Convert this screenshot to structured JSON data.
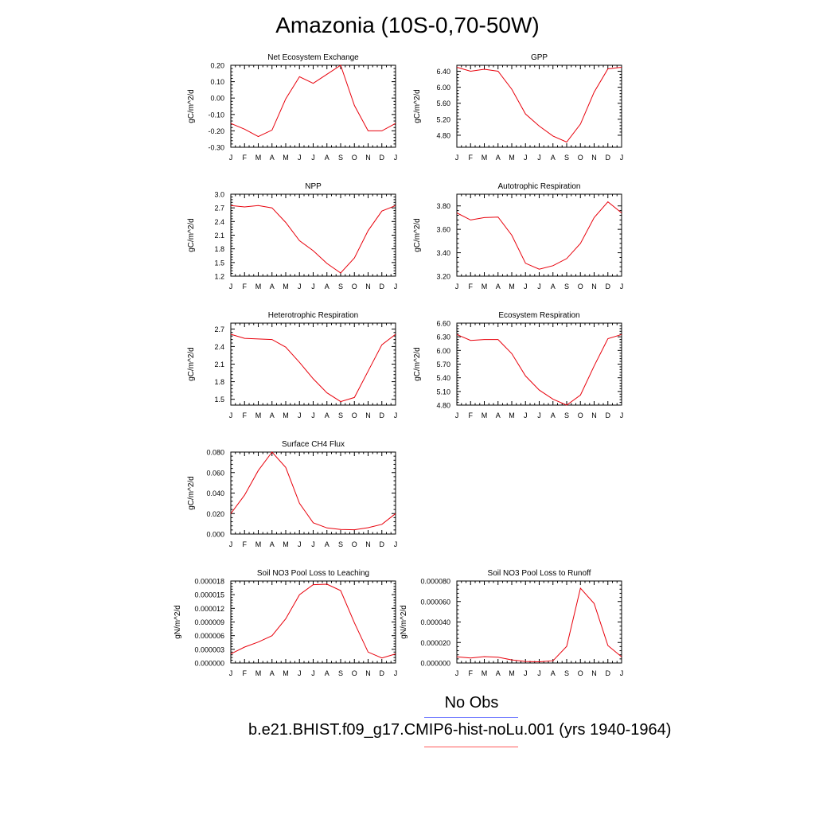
{
  "title": "Amazonia (10S-0,70-50W)",
  "legend": {
    "obs_label": "No Obs",
    "obs_color": "#7b84ff",
    "case_label": "b.e21.BHIST.f09_g17.CMIP6-hist-noLu.001 (yrs 1940-1964)",
    "case_color": "#ff5a5a"
  },
  "line_color": "#e8000b",
  "chart_data": [
    {
      "type": "line",
      "title": "Net Ecosystem Exchange",
      "ylabel": "gC/m^2/d",
      "x": [
        "J",
        "F",
        "M",
        "A",
        "M",
        "J",
        "J",
        "A",
        "S",
        "O",
        "N",
        "D",
        "J"
      ],
      "ylim": [
        -0.3,
        0.2
      ],
      "yticks": [
        -0.3,
        -0.2,
        -0.1,
        0.0,
        0.1,
        0.2
      ],
      "ytick_labels": [
        "-0.30",
        "-0.20",
        "-0.10",
        "0.00",
        "0.10",
        "0.20"
      ],
      "series": [
        {
          "values": [
            -0.155,
            -0.19,
            -0.235,
            -0.195,
            -0.005,
            0.13,
            0.09,
            0.145,
            0.2,
            -0.045,
            -0.2,
            -0.2,
            -0.155
          ]
        }
      ]
    },
    {
      "type": "line",
      "title": "GPP",
      "ylabel": "gC/m^2/d",
      "x": [
        "J",
        "F",
        "M",
        "A",
        "M",
        "J",
        "J",
        "A",
        "S",
        "O",
        "N",
        "D",
        "J"
      ],
      "ylim": [
        4.5,
        6.55
      ],
      "yticks": [
        4.8,
        5.2,
        5.6,
        6.0,
        6.4
      ],
      "ytick_labels": [
        "4.80",
        "5.20",
        "5.60",
        "6.00",
        "6.40"
      ],
      "series": [
        {
          "values": [
            6.5,
            6.4,
            6.45,
            6.4,
            5.95,
            5.33,
            5.03,
            4.78,
            4.63,
            5.08,
            5.88,
            6.46,
            6.5
          ]
        }
      ]
    },
    {
      "type": "line",
      "title": "NPP",
      "ylabel": "gC/m^2/d",
      "x": [
        "J",
        "F",
        "M",
        "A",
        "M",
        "J",
        "J",
        "A",
        "S",
        "O",
        "N",
        "D",
        "J"
      ],
      "ylim": [
        1.2,
        3.0
      ],
      "yticks": [
        1.2,
        1.5,
        1.8,
        2.1,
        2.4,
        2.7,
        3.0
      ],
      "ytick_labels": [
        "1.2",
        "1.5",
        "1.8",
        "2.1",
        "2.4",
        "2.7",
        "3.0"
      ],
      "series": [
        {
          "values": [
            2.75,
            2.72,
            2.75,
            2.7,
            2.38,
            1.98,
            1.76,
            1.48,
            1.27,
            1.6,
            2.2,
            2.63,
            2.75
          ]
        }
      ]
    },
    {
      "type": "line",
      "title": "Autotrophic Respiration",
      "ylabel": "gC/m^2/d",
      "x": [
        "J",
        "F",
        "M",
        "A",
        "M",
        "J",
        "J",
        "A",
        "S",
        "O",
        "N",
        "D",
        "J"
      ],
      "ylim": [
        3.2,
        3.9
      ],
      "yticks": [
        3.2,
        3.4,
        3.6,
        3.8
      ],
      "ytick_labels": [
        "3.20",
        "3.40",
        "3.60",
        "3.80"
      ],
      "series": [
        {
          "values": [
            3.74,
            3.68,
            3.7,
            3.705,
            3.55,
            3.31,
            3.26,
            3.29,
            3.35,
            3.48,
            3.7,
            3.835,
            3.74
          ]
        }
      ]
    },
    {
      "type": "line",
      "title": "Heterotrophic Respiration",
      "ylabel": "gC/m^2/d",
      "x": [
        "J",
        "F",
        "M",
        "A",
        "M",
        "J",
        "J",
        "A",
        "S",
        "O",
        "N",
        "D",
        "J"
      ],
      "ylim": [
        1.4,
        2.8
      ],
      "yticks": [
        1.5,
        1.8,
        2.1,
        2.4,
        2.7
      ],
      "ytick_labels": [
        "1.5",
        "1.8",
        "2.1",
        "2.4",
        "2.7"
      ],
      "series": [
        {
          "values": [
            2.61,
            2.54,
            2.53,
            2.52,
            2.39,
            2.13,
            1.85,
            1.61,
            1.46,
            1.53,
            1.98,
            2.43,
            2.61
          ]
        }
      ]
    },
    {
      "type": "line",
      "title": "Ecosystem Respiration",
      "ylabel": "gC/m^2/d",
      "x": [
        "J",
        "F",
        "M",
        "A",
        "M",
        "J",
        "J",
        "A",
        "S",
        "O",
        "N",
        "D",
        "J"
      ],
      "ylim": [
        4.8,
        6.6
      ],
      "yticks": [
        4.8,
        5.1,
        5.4,
        5.7,
        6.0,
        6.3,
        6.6
      ],
      "ytick_labels": [
        "4.80",
        "5.10",
        "5.40",
        "5.70",
        "6.00",
        "6.30",
        "6.60"
      ],
      "series": [
        {
          "values": [
            6.35,
            6.22,
            6.24,
            6.24,
            5.93,
            5.44,
            5.13,
            4.93,
            4.8,
            5.02,
            5.66,
            6.26,
            6.35
          ]
        }
      ]
    },
    {
      "type": "line",
      "title": "Surface CH4 Flux",
      "ylabel": "gC/m^2/d",
      "x": [
        "J",
        "F",
        "M",
        "A",
        "M",
        "J",
        "J",
        "A",
        "S",
        "O",
        "N",
        "D",
        "J"
      ],
      "ylim": [
        0.0,
        0.08
      ],
      "yticks": [
        0.0,
        0.02,
        0.04,
        0.06,
        0.08
      ],
      "ytick_labels": [
        "0.000",
        "0.020",
        "0.040",
        "0.060",
        "0.080"
      ],
      "series": [
        {
          "values": [
            0.02,
            0.038,
            0.062,
            0.08,
            0.065,
            0.03,
            0.011,
            0.006,
            0.0045,
            0.0042,
            0.0062,
            0.0095,
            0.02
          ]
        }
      ]
    },
    {
      "type": "line",
      "title": "Soil NO3 Pool Loss to Leaching",
      "ylabel": "gN/m^2/d",
      "x": [
        "J",
        "F",
        "M",
        "A",
        "M",
        "J",
        "J",
        "A",
        "S",
        "O",
        "N",
        "D",
        "J"
      ],
      "ylim": [
        0.0,
        1.8e-05
      ],
      "yticks": [
        0.0,
        3e-06,
        6e-06,
        9e-06,
        1.2e-05,
        1.5e-05,
        1.8e-05
      ],
      "ytick_labels": [
        "0.000000",
        "0.000003",
        "0.000006",
        "0.000009",
        "0.000012",
        "0.000015",
        "0.000018"
      ],
      "series": [
        {
          "values": [
            2e-06,
            3.5e-06,
            4.6e-06,
            6e-06,
            9.7e-06,
            1.5e-05,
            1.72e-05,
            1.73e-05,
            1.59e-05,
            8.8e-06,
            2.4e-06,
            1.1e-06,
            2e-06
          ]
        }
      ]
    },
    {
      "type": "line",
      "title": "Soil NO3 Pool Loss to Runoff",
      "ylabel": "gN/m^2/d",
      "x": [
        "J",
        "F",
        "M",
        "A",
        "M",
        "J",
        "J",
        "A",
        "S",
        "O",
        "N",
        "D",
        "J"
      ],
      "ylim": [
        0.0,
        8e-05
      ],
      "yticks": [
        0.0,
        2e-05,
        4e-05,
        6e-05,
        8e-05
      ],
      "ytick_labels": [
        "0.000000",
        "0.000020",
        "0.000040",
        "0.000060",
        "0.000080"
      ],
      "series": [
        {
          "values": [
            6e-06,
            4.8e-06,
            6.2e-06,
            5.6e-06,
            3e-06,
            1.5e-06,
            1.2e-06,
            2.2e-06,
            1.62e-05,
            7.3e-05,
            5.8e-05,
            1.7e-05,
            6e-06
          ]
        }
      ]
    }
  ]
}
